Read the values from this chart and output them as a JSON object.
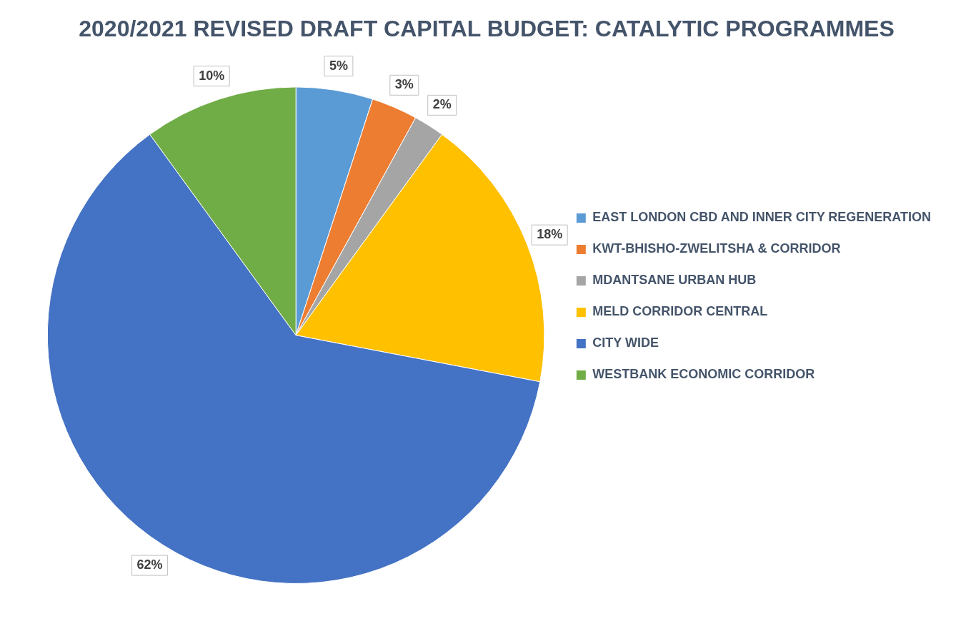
{
  "chart_data": {
    "type": "pie",
    "title": "2020/2021 REVISED DRAFT CAPITAL BUDGET: CATALYTIC PROGRAMMES",
    "categories": [
      "EAST LONDON CBD AND INNER CITY REGENERATION",
      "KWT-BHISHO-ZWELITSHA & CORRIDOR",
      "MDANTSANE URBAN HUB",
      "MELD CORRIDOR CENTRAL",
      "CITY WIDE",
      "WESTBANK ECONOMIC CORRIDOR"
    ],
    "values": [
      5,
      3,
      2,
      18,
      62,
      10
    ],
    "value_labels": [
      "5%",
      "3%",
      "2%",
      "18%",
      "62%",
      "10%"
    ],
    "colors": [
      "#5b9bd5",
      "#ed7d31",
      "#a5a5a5",
      "#ffc000",
      "#4472c4",
      "#70ad47"
    ],
    "legend": "right"
  }
}
